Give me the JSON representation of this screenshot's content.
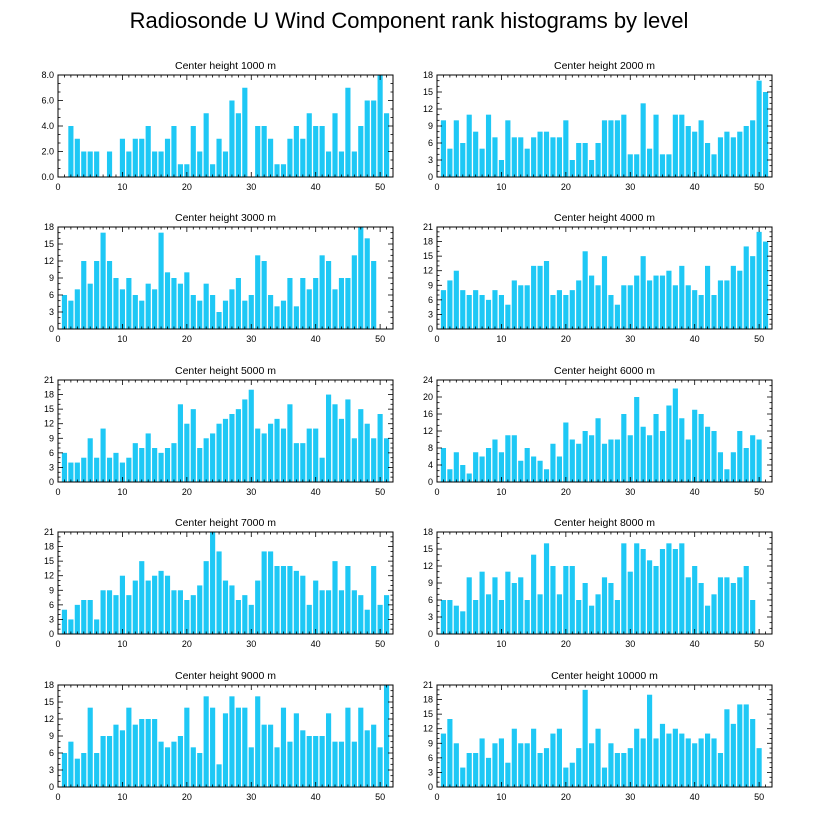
{
  "figure": {
    "title": "Radiosonde U Wind Component rank histograms by level",
    "bar_color": "#1ec8f5",
    "axis_color": "#000000"
  },
  "chart_data": [
    {
      "type": "bar",
      "title": "Center height 1000 m",
      "xlim": [
        0,
        52
      ],
      "ylim": [
        0,
        8
      ],
      "xticks": [
        0,
        10,
        20,
        30,
        40,
        50
      ],
      "yticks": [
        0,
        2,
        4,
        6,
        8
      ],
      "ytick_labels": [
        "0.0",
        "2.0",
        "4.0",
        "6.0",
        "8.0"
      ],
      "x": [
        1,
        2,
        3,
        4,
        5,
        6,
        7,
        8,
        9,
        10,
        11,
        12,
        13,
        14,
        15,
        16,
        17,
        18,
        19,
        20,
        21,
        22,
        23,
        24,
        25,
        26,
        27,
        28,
        29,
        30,
        31,
        32,
        33,
        34,
        35,
        36,
        37,
        38,
        39,
        40,
        41,
        42,
        43,
        44,
        45,
        46,
        47,
        48,
        49,
        50,
        51
      ],
      "values": [
        0,
        4,
        3,
        2,
        2,
        2,
        0,
        2,
        0,
        3,
        2,
        3,
        3,
        4,
        2,
        2,
        3,
        4,
        1,
        1,
        4,
        2,
        5,
        1,
        3,
        2,
        6,
        5,
        7,
        0,
        4,
        4,
        3,
        1,
        1,
        3,
        4,
        3,
        5,
        4,
        4,
        2,
        5,
        2,
        7,
        2,
        4,
        6,
        6,
        8,
        5
      ]
    },
    {
      "type": "bar",
      "title": "Center height 2000 m",
      "xlim": [
        0,
        52
      ],
      "ylim": [
        0,
        18
      ],
      "xticks": [
        0,
        10,
        20,
        30,
        40,
        50
      ],
      "yticks": [
        0,
        3,
        6,
        9,
        12,
        15,
        18
      ],
      "ytick_labels": [
        "0",
        "3",
        "6",
        "9",
        "12",
        "15",
        "18"
      ],
      "x": [
        1,
        2,
        3,
        4,
        5,
        6,
        7,
        8,
        9,
        10,
        11,
        12,
        13,
        14,
        15,
        16,
        17,
        18,
        19,
        20,
        21,
        22,
        23,
        24,
        25,
        26,
        27,
        28,
        29,
        30,
        31,
        32,
        33,
        34,
        35,
        36,
        37,
        38,
        39,
        40,
        41,
        42,
        43,
        44,
        45,
        46,
        47,
        48,
        49,
        50,
        51
      ],
      "values": [
        10,
        5,
        10,
        6,
        11,
        8,
        5,
        11,
        7,
        3,
        10,
        7,
        7,
        5,
        7,
        8,
        8,
        7,
        7,
        10,
        3,
        6,
        6,
        3,
        6,
        10,
        10,
        10,
        11,
        4,
        4,
        13,
        5,
        11,
        4,
        4,
        11,
        11,
        9,
        8,
        10,
        6,
        4,
        7,
        8,
        7,
        8,
        9,
        10,
        17,
        15
      ]
    },
    {
      "type": "bar",
      "title": "Center height 3000 m",
      "xlim": [
        0,
        52
      ],
      "ylim": [
        0,
        18
      ],
      "xticks": [
        0,
        10,
        20,
        30,
        40,
        50
      ],
      "yticks": [
        0,
        3,
        6,
        9,
        12,
        15,
        18
      ],
      "ytick_labels": [
        "0",
        "3",
        "6",
        "9",
        "12",
        "15",
        "18"
      ],
      "x": [
        1,
        2,
        3,
        4,
        5,
        6,
        7,
        8,
        9,
        10,
        11,
        12,
        13,
        14,
        15,
        16,
        17,
        18,
        19,
        20,
        21,
        22,
        23,
        24,
        25,
        26,
        27,
        28,
        29,
        30,
        31,
        32,
        33,
        34,
        35,
        36,
        37,
        38,
        39,
        40,
        41,
        42,
        43,
        44,
        45,
        46,
        47,
        48,
        49,
        50,
        51
      ],
      "values": [
        6,
        5,
        7,
        12,
        8,
        12,
        17,
        12,
        9,
        7,
        9,
        6,
        5,
        8,
        7,
        17,
        10,
        9,
        8,
        10,
        6,
        5,
        8,
        6,
        3,
        5,
        7,
        9,
        5,
        6,
        13,
        12,
        6,
        4,
        5,
        9,
        4,
        9,
        7,
        9,
        13,
        12,
        7,
        9,
        9,
        13,
        18,
        16,
        12,
        0,
        0
      ]
    },
    {
      "type": "bar",
      "title": "Center height 4000 m",
      "xlim": [
        0,
        52
      ],
      "ylim": [
        0,
        21
      ],
      "xticks": [
        0,
        10,
        20,
        30,
        40,
        50
      ],
      "yticks": [
        0,
        3,
        6,
        9,
        12,
        15,
        18,
        21
      ],
      "ytick_labels": [
        "0",
        "3",
        "6",
        "9",
        "12",
        "15",
        "18",
        "21"
      ],
      "x": [
        1,
        2,
        3,
        4,
        5,
        6,
        7,
        8,
        9,
        10,
        11,
        12,
        13,
        14,
        15,
        16,
        17,
        18,
        19,
        20,
        21,
        22,
        23,
        24,
        25,
        26,
        27,
        28,
        29,
        30,
        31,
        32,
        33,
        34,
        35,
        36,
        37,
        38,
        39,
        40,
        41,
        42,
        43,
        44,
        45,
        46,
        47,
        48,
        49,
        50,
        51
      ],
      "values": [
        8,
        10,
        12,
        8,
        7,
        8,
        7,
        6,
        8,
        7,
        5,
        10,
        9,
        9,
        13,
        13,
        14,
        7,
        8,
        7,
        8,
        10,
        16,
        11,
        9,
        15,
        7,
        5,
        9,
        9,
        11,
        15,
        10,
        11,
        11,
        12,
        9,
        13,
        9,
        8,
        7,
        13,
        7,
        10,
        10,
        13,
        12,
        17,
        15,
        20,
        18
      ]
    },
    {
      "type": "bar",
      "title": "Center height 5000 m",
      "xlim": [
        0,
        52
      ],
      "ylim": [
        0,
        21
      ],
      "xticks": [
        0,
        10,
        20,
        30,
        40,
        50
      ],
      "yticks": [
        0,
        3,
        6,
        9,
        12,
        15,
        18,
        21
      ],
      "ytick_labels": [
        "0",
        "3",
        "6",
        "9",
        "12",
        "15",
        "18",
        "21"
      ],
      "x": [
        1,
        2,
        3,
        4,
        5,
        6,
        7,
        8,
        9,
        10,
        11,
        12,
        13,
        14,
        15,
        16,
        17,
        18,
        19,
        20,
        21,
        22,
        23,
        24,
        25,
        26,
        27,
        28,
        29,
        30,
        31,
        32,
        33,
        34,
        35,
        36,
        37,
        38,
        39,
        40,
        41,
        42,
        43,
        44,
        45,
        46,
        47,
        48,
        49,
        50,
        51
      ],
      "values": [
        6,
        4,
        4,
        5,
        9,
        5,
        11,
        5,
        6,
        4,
        5,
        8,
        7,
        10,
        7,
        6,
        7,
        8,
        16,
        12,
        15,
        7,
        9,
        10,
        12,
        13,
        14,
        15,
        17,
        19,
        11,
        10,
        12,
        13,
        11,
        16,
        8,
        8,
        11,
        11,
        5,
        18,
        16,
        13,
        17,
        9,
        15,
        12,
        9,
        14,
        9
      ]
    },
    {
      "type": "bar",
      "title": "Center height 6000 m",
      "xlim": [
        0,
        52
      ],
      "ylim": [
        0,
        24
      ],
      "xticks": [
        0,
        10,
        20,
        30,
        40,
        50
      ],
      "yticks": [
        0,
        4,
        8,
        12,
        16,
        20,
        24
      ],
      "ytick_labels": [
        "0",
        "4",
        "8",
        "12",
        "16",
        "20",
        "24"
      ],
      "x": [
        1,
        2,
        3,
        4,
        5,
        6,
        7,
        8,
        9,
        10,
        11,
        12,
        13,
        14,
        15,
        16,
        17,
        18,
        19,
        20,
        21,
        22,
        23,
        24,
        25,
        26,
        27,
        28,
        29,
        30,
        31,
        32,
        33,
        34,
        35,
        36,
        37,
        38,
        39,
        40,
        41,
        42,
        43,
        44,
        45,
        46,
        47,
        48,
        49,
        50,
        51
      ],
      "values": [
        8,
        3,
        7,
        4,
        2,
        7,
        6,
        8,
        10,
        7,
        11,
        11,
        5,
        8,
        6,
        5,
        3,
        9,
        6,
        14,
        10,
        9,
        12,
        11,
        15,
        9,
        10,
        10,
        16,
        11,
        20,
        13,
        11,
        16,
        12,
        18,
        22,
        15,
        10,
        17,
        16,
        13,
        12,
        7,
        3,
        7,
        12,
        8,
        11,
        10,
        0
      ]
    },
    {
      "type": "bar",
      "title": "Center height 7000 m",
      "xlim": [
        0,
        52
      ],
      "ylim": [
        0,
        21
      ],
      "xticks": [
        0,
        10,
        20,
        30,
        40,
        50
      ],
      "yticks": [
        0,
        3,
        6,
        9,
        12,
        15,
        18,
        21
      ],
      "ytick_labels": [
        "0",
        "3",
        "6",
        "9",
        "12",
        "15",
        "18",
        "21"
      ],
      "x": [
        1,
        2,
        3,
        4,
        5,
        6,
        7,
        8,
        9,
        10,
        11,
        12,
        13,
        14,
        15,
        16,
        17,
        18,
        19,
        20,
        21,
        22,
        23,
        24,
        25,
        26,
        27,
        28,
        29,
        30,
        31,
        32,
        33,
        34,
        35,
        36,
        37,
        38,
        39,
        40,
        41,
        42,
        43,
        44,
        45,
        46,
        47,
        48,
        49,
        50,
        51
      ],
      "values": [
        5,
        3,
        6,
        7,
        7,
        3,
        9,
        9,
        8,
        12,
        8,
        11,
        15,
        11,
        12,
        13,
        12,
        9,
        9,
        7,
        8,
        10,
        15,
        21,
        17,
        11,
        10,
        7,
        8,
        6,
        11,
        17,
        17,
        14,
        14,
        14,
        13,
        12,
        6,
        11,
        9,
        9,
        15,
        9,
        14,
        9,
        8,
        5,
        14,
        6,
        8
      ]
    },
    {
      "type": "bar",
      "title": "Center height 8000 m",
      "xlim": [
        0,
        52
      ],
      "ylim": [
        0,
        18
      ],
      "xticks": [
        0,
        10,
        20,
        30,
        40,
        50
      ],
      "yticks": [
        0,
        3,
        6,
        9,
        12,
        15,
        18
      ],
      "ytick_labels": [
        "0",
        "3",
        "6",
        "9",
        "12",
        "15",
        "18"
      ],
      "x": [
        1,
        2,
        3,
        4,
        5,
        6,
        7,
        8,
        9,
        10,
        11,
        12,
        13,
        14,
        15,
        16,
        17,
        18,
        19,
        20,
        21,
        22,
        23,
        24,
        25,
        26,
        27,
        28,
        29,
        30,
        31,
        32,
        33,
        34,
        35,
        36,
        37,
        38,
        39,
        40,
        41,
        42,
        43,
        44,
        45,
        46,
        47,
        48,
        49,
        50,
        51
      ],
      "values": [
        6,
        6,
        5,
        4,
        10,
        6,
        11,
        7,
        10,
        6,
        11,
        9,
        10,
        6,
        14,
        7,
        16,
        12,
        7,
        12,
        12,
        6,
        9,
        5,
        7,
        10,
        9,
        6,
        16,
        11,
        16,
        15,
        13,
        12,
        15,
        16,
        15,
        16,
        10,
        12,
        9,
        5,
        7,
        10,
        10,
        9,
        10,
        12,
        6,
        0,
        0
      ]
    },
    {
      "type": "bar",
      "title": "Center height 9000 m",
      "xlim": [
        0,
        52
      ],
      "ylim": [
        0,
        18
      ],
      "xticks": [
        0,
        10,
        20,
        30,
        40,
        50
      ],
      "yticks": [
        0,
        3,
        6,
        9,
        12,
        15,
        18
      ],
      "ytick_labels": [
        "0",
        "3",
        "6",
        "9",
        "12",
        "15",
        "18"
      ],
      "x": [
        1,
        2,
        3,
        4,
        5,
        6,
        7,
        8,
        9,
        10,
        11,
        12,
        13,
        14,
        15,
        16,
        17,
        18,
        19,
        20,
        21,
        22,
        23,
        24,
        25,
        26,
        27,
        28,
        29,
        30,
        31,
        32,
        33,
        34,
        35,
        36,
        37,
        38,
        39,
        40,
        41,
        42,
        43,
        44,
        45,
        46,
        47,
        48,
        49,
        50,
        51
      ],
      "values": [
        6,
        8,
        5,
        6,
        14,
        6,
        9,
        9,
        11,
        10,
        14,
        11,
        12,
        12,
        12,
        8,
        7,
        8,
        9,
        14,
        7,
        6,
        16,
        14,
        4,
        13,
        16,
        14,
        14,
        7,
        16,
        11,
        11,
        7,
        14,
        8,
        13,
        10,
        9,
        9,
        9,
        13,
        8,
        8,
        14,
        8,
        14,
        10,
        11,
        7,
        18
      ]
    },
    {
      "type": "bar",
      "title": "Center height 10000 m",
      "xlim": [
        0,
        52
      ],
      "ylim": [
        0,
        21
      ],
      "xticks": [
        0,
        10,
        20,
        30,
        40,
        50
      ],
      "yticks": [
        0,
        3,
        6,
        9,
        12,
        15,
        18,
        21
      ],
      "ytick_labels": [
        "0",
        "3",
        "6",
        "9",
        "12",
        "15",
        "18",
        "21"
      ],
      "x": [
        1,
        2,
        3,
        4,
        5,
        6,
        7,
        8,
        9,
        10,
        11,
        12,
        13,
        14,
        15,
        16,
        17,
        18,
        19,
        20,
        21,
        22,
        23,
        24,
        25,
        26,
        27,
        28,
        29,
        30,
        31,
        32,
        33,
        34,
        35,
        36,
        37,
        38,
        39,
        40,
        41,
        42,
        43,
        44,
        45,
        46,
        47,
        48,
        49,
        50,
        51
      ],
      "values": [
        11,
        14,
        9,
        4,
        7,
        7,
        10,
        6,
        9,
        10,
        5,
        12,
        9,
        9,
        12,
        7,
        8,
        11,
        12,
        4,
        5,
        8,
        20,
        9,
        12,
        4,
        9,
        7,
        7,
        8,
        12,
        10,
        19,
        10,
        13,
        11,
        12,
        11,
        10,
        9,
        10,
        11,
        10,
        7,
        16,
        13,
        17,
        17,
        14,
        8,
        0
      ]
    }
  ]
}
